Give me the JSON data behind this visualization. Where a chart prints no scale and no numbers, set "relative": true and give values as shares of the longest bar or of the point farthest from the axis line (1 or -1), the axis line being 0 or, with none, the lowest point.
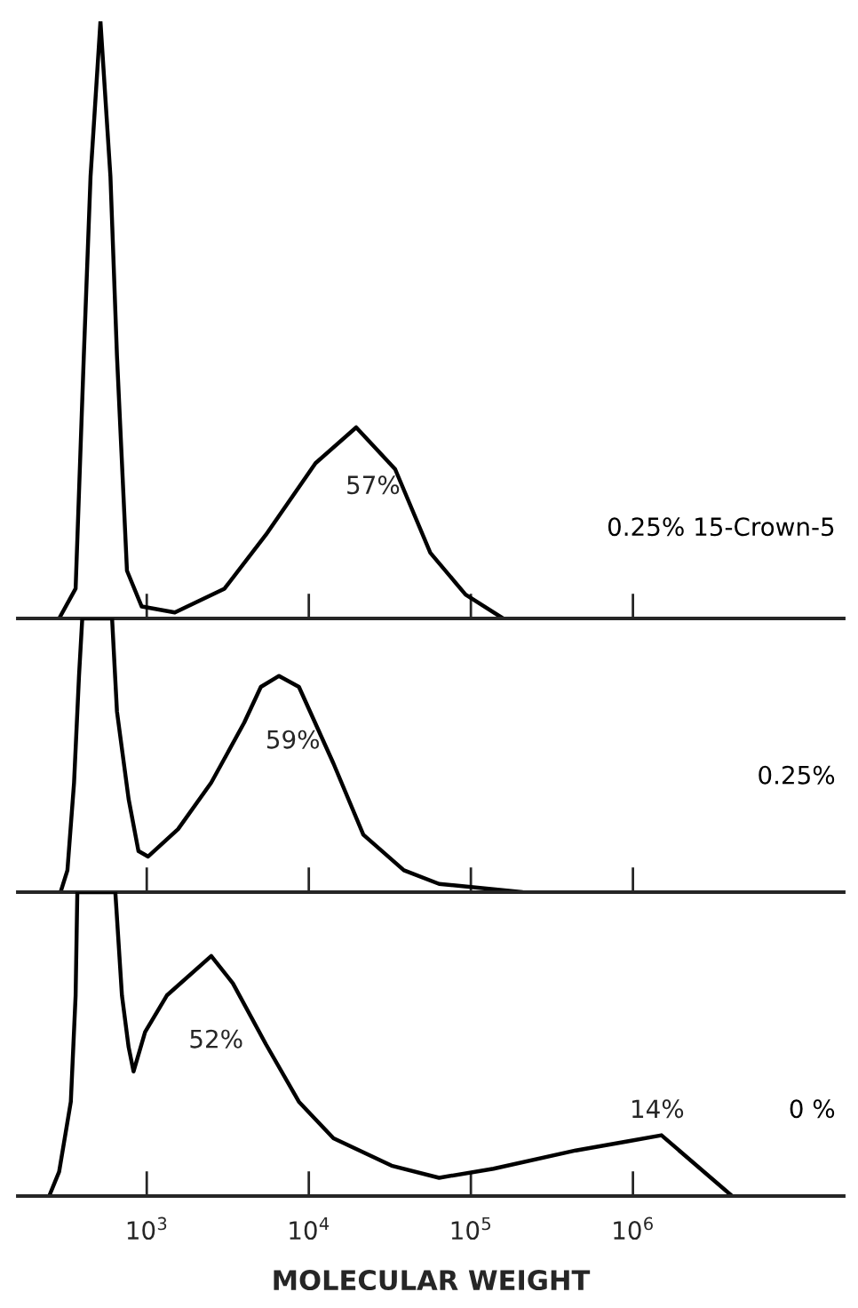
{
  "chart_data": [
    {
      "type": "line",
      "relative": true,
      "log": "x",
      "xlim": [
        160,
        20000000
      ],
      "tick_labels": false,
      "xticks": [
        {
          "value": 1000,
          "label": null
        },
        {
          "value": 10000,
          "label": null
        },
        {
          "value": 100000,
          "label": null
        },
        {
          "value": 1000000,
          "label": null
        }
      ],
      "series": [
        {
          "name": "0.25% 15-Crown-5",
          "color": "#000000",
          "x": [
            288,
            364,
            409,
            450,
            518,
            597,
            655,
            755,
            931,
            1490,
            3020,
            5430,
            11000,
            19600,
            34100,
            56200,
            92700,
            158000
          ],
          "values": [
            0,
            0.05,
            0.44,
            0.74,
            1,
            0.74,
            0.44,
            0.08,
            0.02,
            0.01,
            0.05,
            0.14,
            0.26,
            0.32,
            0.25,
            0.11,
            0.04,
            0
          ]
        }
      ],
      "annotations": [
        "57%"
      ]
    },
    {
      "type": "line",
      "relative": true,
      "log": "x",
      "xlim": [
        160,
        20000000
      ],
      "tick_labels": false,
      "xticks": [
        {
          "value": 1000,
          "label": null
        },
        {
          "value": 10000,
          "label": null
        },
        {
          "value": 100000,
          "label": null
        },
        {
          "value": 1000000,
          "label": null
        }
      ],
      "series": [
        {
          "name": "0.25%",
          "color": "#000000",
          "x": [
            294,
            324,
            356,
            382,
            400,
            611,
            655,
            773,
            889,
            1020,
            1560,
            2500,
            4000,
            5060,
            6550,
            8690,
            14200,
            21700,
            38600,
            63700,
            208000
          ],
          "values": [
            0,
            0.08,
            0.4,
            0.79,
            1,
            1,
            0.66,
            0.34,
            0.15,
            0.13,
            0.23,
            0.4,
            0.62,
            0.75,
            0.79,
            0.75,
            0.47,
            0.21,
            0.08,
            0.03,
            0
          ]
        }
      ],
      "annotations": [
        "59%"
      ]
    },
    {
      "type": "line",
      "relative": true,
      "log": "x",
      "xlim": [
        160,
        20000000
      ],
      "tick_labels": "x",
      "xlabel": "MOLECULAR WEIGHT",
      "xticks": [
        {
          "value": 1000,
          "label": "10$^{3}$"
        },
        {
          "value": 10000,
          "label": "10$^{4}$"
        },
        {
          "value": 100000,
          "label": "10$^{5}$"
        },
        {
          "value": 1000000,
          "label": "10$^{6}$"
        }
      ],
      "series": [
        {
          "name": "0 %",
          "color": "#000000",
          "x": [
            250,
            288,
            340,
            364,
            373,
            640,
            703,
            773,
            829,
            977,
            1330,
            2500,
            3400,
            5430,
            8690,
            14200,
            32400,
            63700,
            138000,
            444000,
            923000,
            1500000,
            4090000
          ],
          "values": [
            0,
            0.08,
            0.31,
            0.66,
            1,
            1,
            0.66,
            0.49,
            0.41,
            0.54,
            0.66,
            0.79,
            0.7,
            0.5,
            0.31,
            0.19,
            0.1,
            0.06,
            0.09,
            0.15,
            0.18,
            0.2,
            0
          ]
        }
      ],
      "annotations": [
        "52%",
        "14%"
      ]
    }
  ]
}
